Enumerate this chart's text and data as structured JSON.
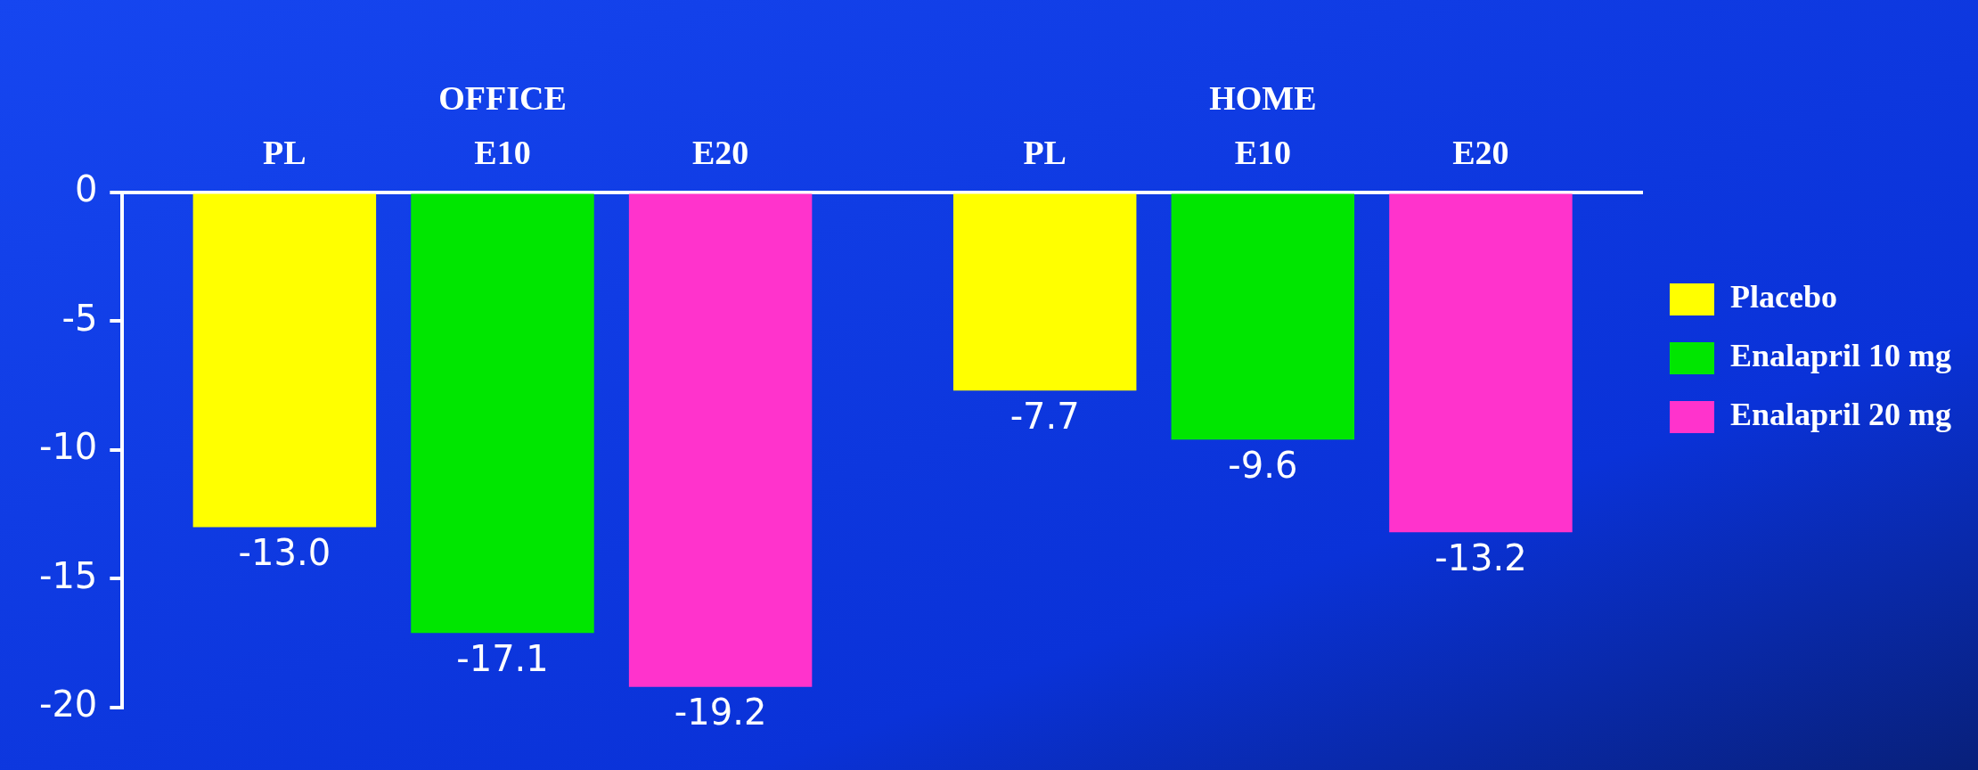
{
  "chart_data": {
    "type": "bar",
    "categories": [
      "OFFICE",
      "HOME"
    ],
    "series": [
      {
        "name": "Placebo",
        "color": "#ffff00",
        "values": [
          -13.0,
          -7.7
        ],
        "value_labels": [
          "-13.0",
          "-7.7"
        ]
      },
      {
        "name": "Enalapril 10 mg",
        "color": "#00e600",
        "values": [
          -17.1,
          -9.6
        ],
        "value_labels": [
          "-17.1",
          "-9.6"
        ]
      },
      {
        "name": "Enalapril 20 mg",
        "color": "#ff33cc",
        "values": [
          -19.2,
          -13.2
        ],
        "value_labels": [
          "-19.2",
          "-13.2"
        ]
      }
    ],
    "annotations": [
      "PL",
      "E10",
      "E20",
      "PL",
      "E10",
      "E20"
    ],
    "ylim": [
      -20,
      0
    ],
    "yticks": [
      0,
      -5,
      -10,
      -15,
      -20
    ],
    "grid": false,
    "legend": "right"
  }
}
